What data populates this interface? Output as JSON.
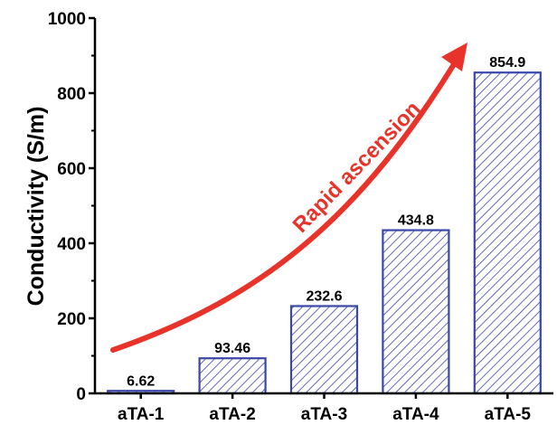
{
  "chart_data": {
    "type": "bar",
    "title": "",
    "xlabel": "",
    "ylabel": "Conductivity (S/m)",
    "categories": [
      "aTA-1",
      "aTA-2",
      "aTA-3",
      "aTA-4",
      "aTA-5"
    ],
    "values": [
      6.62,
      93.46,
      232.6,
      434.8,
      854.9
    ],
    "data_labels": [
      "6.62",
      "93.46",
      "232.6",
      "434.8",
      "854.9"
    ],
    "ylim": [
      0,
      1000
    ],
    "yticks": [
      0,
      200,
      400,
      600,
      800,
      1000
    ],
    "grid": false,
    "legend": "none",
    "bar_color": "#3a47a8",
    "bar_fill": "hatched",
    "annotation": {
      "text": "Rapid ascension",
      "color": "#e8332a"
    }
  }
}
